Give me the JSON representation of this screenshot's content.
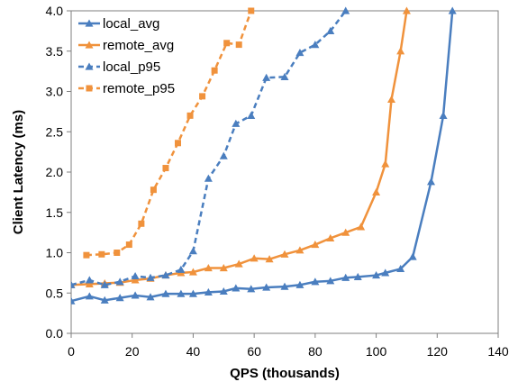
{
  "chart_data": {
    "type": "line",
    "title": "",
    "xlabel": "QPS (thousands)",
    "ylabel": "Client Latency (ms)",
    "xlim": [
      0,
      140
    ],
    "ylim": [
      0.0,
      4.0
    ],
    "xticks": [
      0,
      20,
      40,
      60,
      80,
      100,
      120,
      140
    ],
    "xtick_labels": [
      "0",
      "20",
      "40",
      "60",
      "80",
      "100",
      "120",
      "140"
    ],
    "yticks": [
      0.0,
      0.5,
      1.0,
      1.5,
      2.0,
      2.5,
      3.0,
      3.5,
      4.0
    ],
    "ytick_labels": [
      "0.0",
      "0.5",
      "1.0",
      "1.5",
      "2.0",
      "2.5",
      "3.0",
      "3.5",
      "4.0"
    ],
    "grid": false,
    "legend_position": "top-left",
    "series": [
      {
        "name": "local_avg",
        "color": "#4a7ebf",
        "dash": "solid",
        "marker": "triangle",
        "x": [
          0,
          6,
          11,
          16,
          21,
          26,
          31,
          36,
          40,
          45,
          50,
          54,
          59,
          64,
          70,
          75,
          80,
          85,
          90,
          94,
          100,
          103,
          108,
          112,
          118,
          122,
          125
        ],
        "y": [
          0.4,
          0.46,
          0.41,
          0.44,
          0.47,
          0.45,
          0.49,
          0.49,
          0.49,
          0.51,
          0.52,
          0.56,
          0.55,
          0.57,
          0.58,
          0.6,
          0.64,
          0.65,
          0.69,
          0.7,
          0.72,
          0.75,
          0.8,
          0.95,
          1.88,
          2.7,
          4.0
        ]
      },
      {
        "name": "remote_avg",
        "color": "#f0923c",
        "dash": "solid",
        "marker": "triangle",
        "x": [
          0,
          6,
          11,
          16,
          21,
          26,
          31,
          36,
          40,
          45,
          50,
          55,
          60,
          65,
          70,
          75,
          80,
          85,
          90,
          95,
          100,
          103,
          105,
          108,
          110
        ],
        "y": [
          0.6,
          0.61,
          0.62,
          0.63,
          0.66,
          0.68,
          0.72,
          0.75,
          0.76,
          0.81,
          0.81,
          0.86,
          0.93,
          0.92,
          0.98,
          1.03,
          1.1,
          1.18,
          1.25,
          1.32,
          1.75,
          2.1,
          2.9,
          3.5,
          4.0
        ]
      },
      {
        "name": "local_p95",
        "color": "#4a7ebf",
        "dash": "dashed",
        "marker": "triangle",
        "x": [
          0,
          6,
          11,
          16,
          21,
          26,
          31,
          36,
          40,
          45,
          50,
          54,
          59,
          64,
          70,
          75,
          80,
          85,
          90
        ],
        "y": [
          0.6,
          0.66,
          0.6,
          0.64,
          0.71,
          0.69,
          0.72,
          0.79,
          1.02,
          1.92,
          2.2,
          2.6,
          2.7,
          3.17,
          3.18,
          3.48,
          3.58,
          3.75,
          4.0
        ]
      },
      {
        "name": "remote_p95",
        "color": "#f0923c",
        "dash": "dashed",
        "marker": "square",
        "x": [
          5,
          10,
          15,
          19,
          23,
          27,
          31,
          35,
          39,
          43,
          47,
          51,
          55,
          59
        ],
        "y": [
          0.97,
          0.98,
          1.0,
          1.1,
          1.36,
          1.78,
          2.05,
          2.36,
          2.7,
          2.94,
          3.26,
          3.6,
          3.58,
          4.0
        ]
      }
    ]
  }
}
